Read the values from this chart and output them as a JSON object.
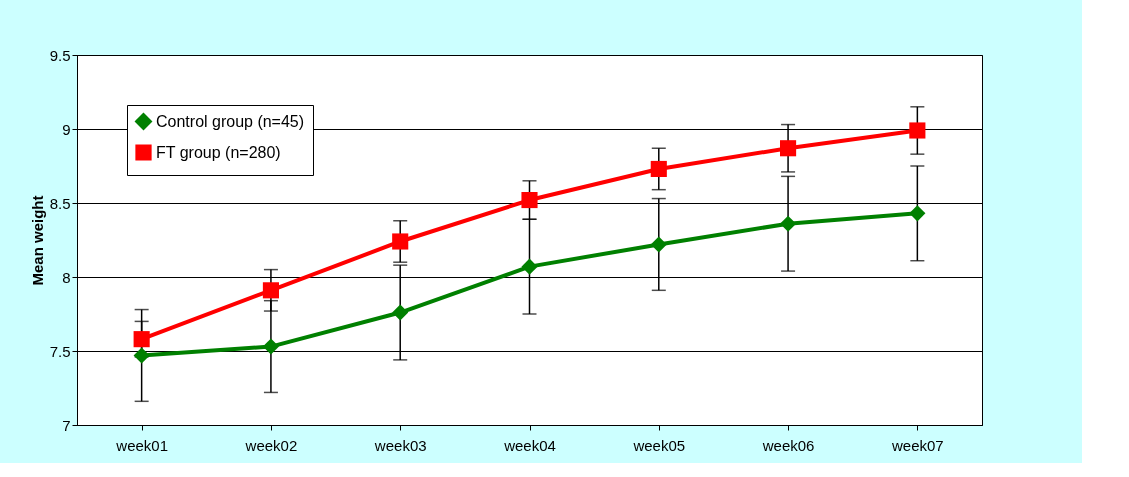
{
  "chart_data": {
    "type": "line",
    "ylabel": "Mean weight",
    "categories": [
      "week01",
      "week02",
      "week03",
      "week04",
      "week05",
      "week06",
      "week07"
    ],
    "series": [
      {
        "name": "Control group (n=45)",
        "color": "#008000",
        "marker": "diamond",
        "values": [
          7.47,
          7.53,
          7.76,
          8.07,
          8.22,
          8.36,
          8.43
        ],
        "errors": [
          0.31,
          0.31,
          0.32,
          0.32,
          0.31,
          0.32,
          0.32
        ]
      },
      {
        "name": "FT group (n=280)",
        "color": "#ff0000",
        "marker": "square",
        "values": [
          7.58,
          7.91,
          8.24,
          8.52,
          8.73,
          8.87,
          8.99
        ],
        "errors": [
          0.12,
          0.14,
          0.14,
          0.13,
          0.14,
          0.16,
          0.16
        ]
      }
    ],
    "ylim": [
      7,
      9.5
    ],
    "yticks": [
      7,
      7.5,
      8,
      8.5,
      9,
      9.5
    ],
    "grid": "y",
    "legend": "top left",
    "line_style": "solid"
  }
}
